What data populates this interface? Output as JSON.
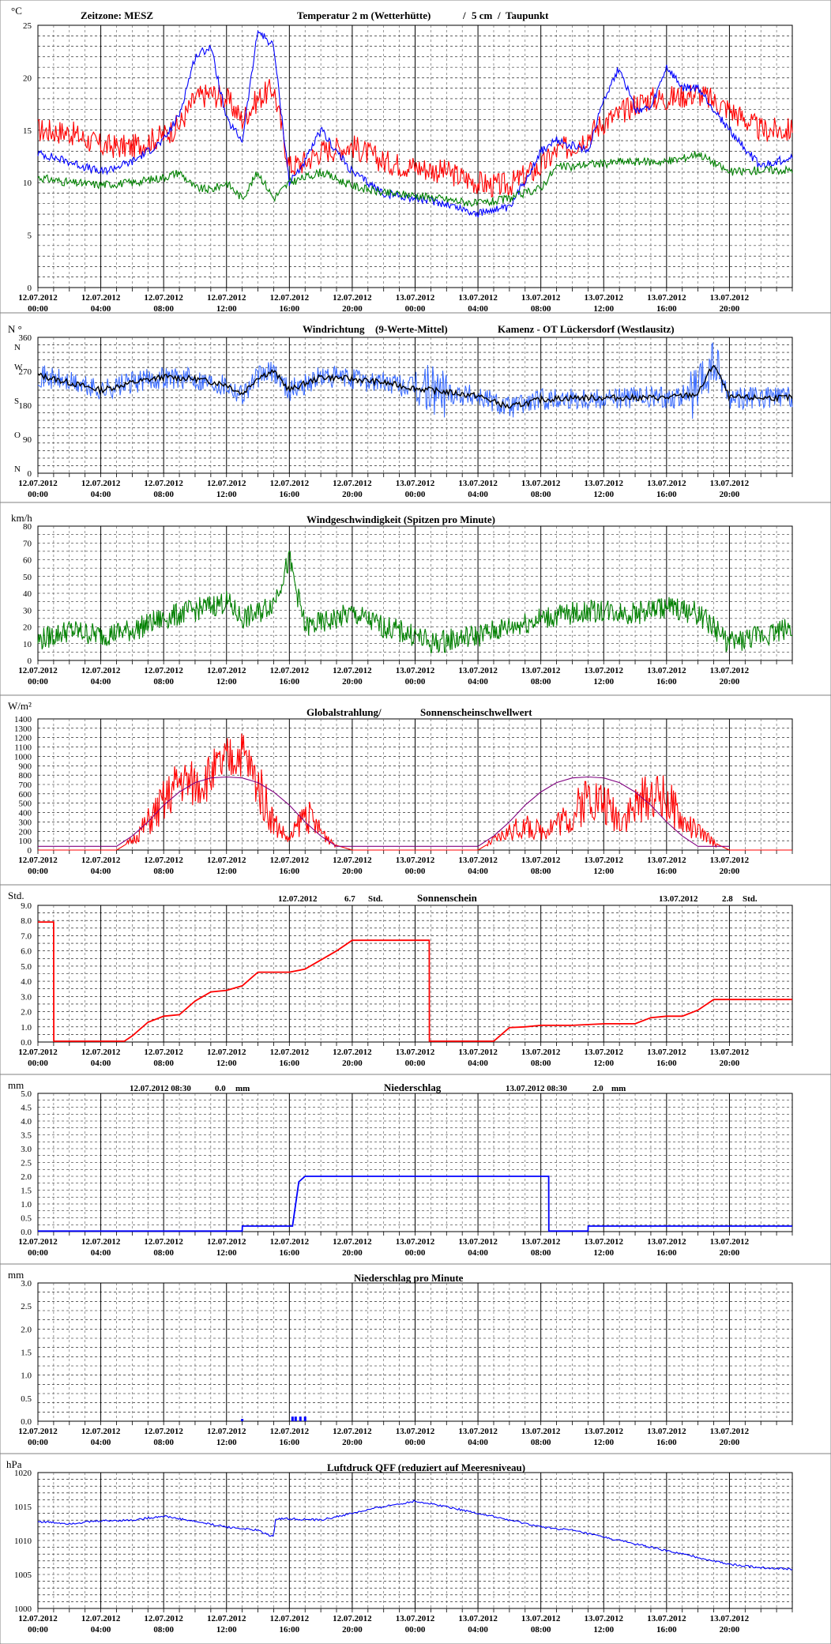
{
  "x_tick_labels": [
    {
      "date": "12.07.2012",
      "time": "00:00"
    },
    {
      "date": "12.07.2012",
      "time": "04:00"
    },
    {
      "date": "12.07.2012",
      "time": "08:00"
    },
    {
      "date": "12.07.2012",
      "time": "12:00"
    },
    {
      "date": "12.07.2012",
      "time": "16:00"
    },
    {
      "date": "12.07.2012",
      "time": "20:00"
    },
    {
      "date": "13.07.2012",
      "time": "00:00"
    },
    {
      "date": "13.07.2012",
      "time": "04:00"
    },
    {
      "date": "13.07.2012",
      "time": "08:00"
    },
    {
      "date": "13.07.2012",
      "time": "12:00"
    },
    {
      "date": "13.07.2012",
      "time": "16:00"
    },
    {
      "date": "13.07.2012",
      "time": "20:00"
    }
  ],
  "colors": {
    "red": "#ff0000",
    "blue": "#0000ff",
    "green": "#008000",
    "purple": "#800080",
    "black": "#000000",
    "wind_dir": "#3366ff"
  },
  "chart_data": [
    {
      "id": "temperature",
      "type": "line",
      "unit": "°C",
      "ylim": [
        0,
        25
      ],
      "yticks": [
        0,
        5,
        10,
        15,
        20,
        25
      ],
      "header": {
        "timezone": "Zeitzone: MESZ",
        "title_red": "Temperatur 2 m (Wetterhütte)",
        "sep1": "/",
        "title_blue": "5 cm",
        "sep2": "/",
        "title_green": "Taupunkt"
      },
      "x_hours": [
        0,
        2,
        4,
        6,
        8,
        9,
        10,
        11,
        12,
        13,
        14,
        15,
        16,
        17,
        18,
        20,
        22,
        24,
        26,
        28,
        29,
        30,
        32,
        33,
        34,
        35,
        36,
        37,
        38,
        39,
        40,
        41,
        42,
        44,
        46,
        48
      ],
      "series": [
        {
          "name": "Temperatur 2 m (Wetterhütte)",
          "color": "red",
          "values": [
            15,
            14.8,
            13.5,
            13.4,
            14.5,
            15.5,
            18,
            18.5,
            18,
            16,
            18,
            19,
            11.5,
            12,
            13,
            13.5,
            12,
            11.5,
            11,
            10,
            9.7,
            9.8,
            11.5,
            13,
            13.5,
            14.5,
            15.8,
            16.5,
            17.5,
            18,
            18,
            18.3,
            18.5,
            17,
            15,
            15
          ]
        },
        {
          "name": "5 cm",
          "color": "blue",
          "values": [
            12.8,
            12,
            11,
            12,
            14,
            16.5,
            22,
            23,
            16,
            14,
            24.5,
            23,
            10,
            12,
            15,
            11,
            9,
            8.5,
            8,
            7,
            7.5,
            7.5,
            13,
            14,
            13.5,
            13,
            18,
            21,
            17,
            17,
            21,
            19,
            19,
            15,
            11.5,
            12.5
          ]
        },
        {
          "name": "Taupunkt",
          "color": "green",
          "values": [
            10.5,
            10,
            9.8,
            10,
            10.5,
            11,
            9.5,
            9.3,
            10,
            8.5,
            11,
            8.5,
            10,
            10.5,
            11,
            9.7,
            9,
            8.8,
            8.4,
            8,
            8.2,
            8.5,
            9.5,
            11.5,
            11.5,
            11.8,
            11.8,
            12,
            12,
            12,
            12,
            12.3,
            12.8,
            11,
            11.2,
            11.2
          ]
        }
      ]
    },
    {
      "id": "wind_direction",
      "type": "line",
      "unit_label": "N °",
      "ylim": [
        0,
        360
      ],
      "dir_labels": [
        "N",
        "W",
        "S",
        "O",
        "N"
      ],
      "tick_labels": [
        "360",
        "270",
        "180",
        "90",
        "0"
      ],
      "header": {
        "title_blue": "Windrichtung",
        "title_black": "(9-Werte-Mittel)",
        "station": "Kamenz - OT Lückersdorf (Westlausitz)"
      },
      "x_hours": [
        0,
        2,
        4,
        6,
        8,
        10,
        12,
        13,
        14,
        15,
        16,
        18,
        20,
        22,
        24,
        26,
        28,
        29,
        30,
        32,
        34,
        36,
        38,
        40,
        42,
        43,
        44,
        46,
        48
      ],
      "series": [
        {
          "name": "Windrichtung (9-Werte-Mittel)",
          "color": "black",
          "values": [
            260,
            240,
            220,
            240,
            255,
            250,
            235,
            210,
            255,
            270,
            220,
            255,
            250,
            240,
            225,
            215,
            205,
            190,
            175,
            195,
            200,
            200,
            200,
            200,
            210,
            290,
            200,
            200,
            200
          ]
        }
      ]
    },
    {
      "id": "wind_speed",
      "type": "line",
      "unit": "km/h",
      "ylim": [
        0,
        80
      ],
      "yticks": [
        0,
        10,
        20,
        30,
        40,
        50,
        60,
        70,
        80
      ],
      "title": "Windgeschwindigkeit (Spitzen pro Minute)",
      "x_hours": [
        0,
        2,
        4,
        6,
        8,
        10,
        12,
        13,
        14,
        15,
        16,
        17,
        18,
        20,
        22,
        24,
        25,
        26,
        28,
        30,
        32,
        34,
        36,
        38,
        40,
        42,
        43,
        44,
        46,
        48
      ],
      "series": [
        {
          "name": "Windgeschwindigkeit",
          "color": "green",
          "values": [
            12,
            18,
            15,
            18,
            25,
            30,
            35,
            25,
            28,
            35,
            60,
            20,
            22,
            28,
            20,
            15,
            10,
            12,
            15,
            20,
            25,
            28,
            30,
            28,
            32,
            28,
            20,
            10,
            15,
            20
          ]
        }
      ]
    },
    {
      "id": "radiation",
      "type": "line",
      "unit": "W/m²",
      "ylim": [
        0,
        1400
      ],
      "yticks": [
        0,
        100,
        200,
        300,
        400,
        500,
        600,
        700,
        800,
        900,
        1000,
        1100,
        1200,
        1300,
        1400
      ],
      "title_a": "Globalstrahlung/",
      "title_b": "Sonnenscheinschwellwert",
      "x_hours": [
        0,
        5,
        6,
        7,
        8,
        9,
        10,
        11,
        12,
        13,
        14,
        15,
        16,
        17,
        18,
        19,
        20,
        28,
        29,
        30,
        31,
        32,
        33,
        34,
        35,
        36,
        37,
        38,
        39,
        40,
        41,
        42,
        43,
        44
      ],
      "series": [
        {
          "name": "Globalstrahlung",
          "color": "red",
          "values": [
            0,
            0,
            100,
            300,
            500,
            750,
            700,
            800,
            950,
            1050,
            700,
            300,
            100,
            400,
            200,
            50,
            0,
            0,
            100,
            200,
            250,
            200,
            300,
            350,
            600,
            500,
            350,
            450,
            600,
            550,
            300,
            200,
            80,
            0
          ]
        },
        {
          "name": "Sonnenscheinschwellwert",
          "color": "purple",
          "values": [
            40,
            40,
            150,
            300,
            480,
            620,
            720,
            770,
            780,
            770,
            720,
            620,
            480,
            300,
            150,
            40,
            40,
            40,
            150,
            300,
            480,
            620,
            720,
            770,
            780,
            770,
            720,
            620,
            480,
            300,
            150,
            40,
            40,
            40
          ]
        }
      ]
    },
    {
      "id": "sunshine",
      "type": "line",
      "unit": "Std.",
      "ylim": [
        0,
        9
      ],
      "yticks": [
        "0.0",
        "1.0",
        "2.0",
        "3.0",
        "4.0",
        "5.0",
        "6.0",
        "7.0",
        "8.0",
        "9.0"
      ],
      "title": "Sonnenschein",
      "totals": [
        {
          "date": "12.07.2012",
          "value": "6.7",
          "unit": "Std."
        },
        {
          "date": "13.07.2012",
          "value": "2.8",
          "unit": "Std."
        }
      ],
      "x_hours": [
        0,
        1,
        1.01,
        5.5,
        6,
        7,
        8,
        9,
        10,
        11,
        12,
        13,
        14,
        15,
        16,
        17,
        18,
        19,
        20,
        21,
        22,
        23,
        24.9,
        24.91,
        29,
        30,
        31,
        32,
        34,
        36,
        38,
        39,
        40,
        41,
        42,
        43,
        44,
        48
      ],
      "series": [
        {
          "name": "Sonnenschein",
          "color": "red",
          "values": [
            7.9,
            7.9,
            0.05,
            0.05,
            0.4,
            1.3,
            1.7,
            1.8,
            2.7,
            3.3,
            3.4,
            3.7,
            4.6,
            4.6,
            4.6,
            4.8,
            5.4,
            6.0,
            6.7,
            6.7,
            6.7,
            6.7,
            6.7,
            0.05,
            0.05,
            0.95,
            1.0,
            1.1,
            1.1,
            1.2,
            1.2,
            1.6,
            1.7,
            1.7,
            2.1,
            2.8,
            2.8,
            2.8
          ]
        }
      ]
    },
    {
      "id": "precip",
      "type": "line",
      "unit": "mm",
      "ylim": [
        0,
        5
      ],
      "yticks": [
        "0.0",
        "0.5",
        "1.0",
        "1.5",
        "2.0",
        "2.5",
        "3.0",
        "3.5",
        "4.0",
        "4.5",
        "5.0"
      ],
      "title": "Niederschlag",
      "totals": [
        {
          "date": "12.07.2012 08:30",
          "value": "0.0",
          "unit": "mm"
        },
        {
          "date": "13.07.2012 08:30",
          "value": "2.0",
          "unit": "mm"
        }
      ],
      "x_hours": [
        0,
        13,
        13.01,
        16.2,
        16.6,
        17,
        20,
        24,
        29,
        32.5,
        32.51,
        35,
        35.01,
        48
      ],
      "series": [
        {
          "name": "Niederschlag",
          "color": "blue",
          "values": [
            0.02,
            0.02,
            0.2,
            0.2,
            1.8,
            2.0,
            2.0,
            2.0,
            2.0,
            2.0,
            0.02,
            0.02,
            0.2,
            0.2
          ]
        }
      ]
    },
    {
      "id": "precip_minute",
      "type": "bar",
      "unit": "mm",
      "ylim": [
        0,
        3
      ],
      "yticks": [
        "0.0",
        "0.5",
        "1.0",
        "1.5",
        "2.0",
        "2.5",
        "3.0"
      ],
      "title": "Niederschlag pro Minute",
      "x_hours": [
        13,
        16.2,
        16.4,
        16.7,
        17.0
      ],
      "series": [
        {
          "name": "Niederschlag pro Minute",
          "color": "blue",
          "values": [
            0.05,
            0.1,
            0.1,
            0.1,
            0.1
          ]
        }
      ]
    },
    {
      "id": "pressure",
      "type": "line",
      "unit": "hPa",
      "ylim": [
        1000,
        1020
      ],
      "yticks": [
        1000,
        1005,
        1010,
        1015,
        1020
      ],
      "title": "Luftdruck QFF (reduziert auf Meeresniveau)",
      "x_hours": [
        0,
        2,
        4,
        6,
        8,
        10,
        12,
        14,
        15,
        15.1,
        16,
        18,
        20,
        22,
        24,
        26,
        28,
        30,
        32,
        34,
        36,
        38,
        40,
        42,
        44,
        46,
        48
      ],
      "series": [
        {
          "name": "Luftdruck QFF",
          "color": "blue",
          "values": [
            1012.8,
            1012.5,
            1012.9,
            1013,
            1013.6,
            1012.8,
            1012,
            1011.5,
            1010.5,
            1013.2,
            1013.2,
            1013,
            1014,
            1015,
            1015.8,
            1015,
            1014,
            1013,
            1012,
            1011.5,
            1010.5,
            1009.5,
            1008.5,
            1007.5,
            1006.5,
            1006,
            1005.8
          ]
        }
      ]
    }
  ]
}
